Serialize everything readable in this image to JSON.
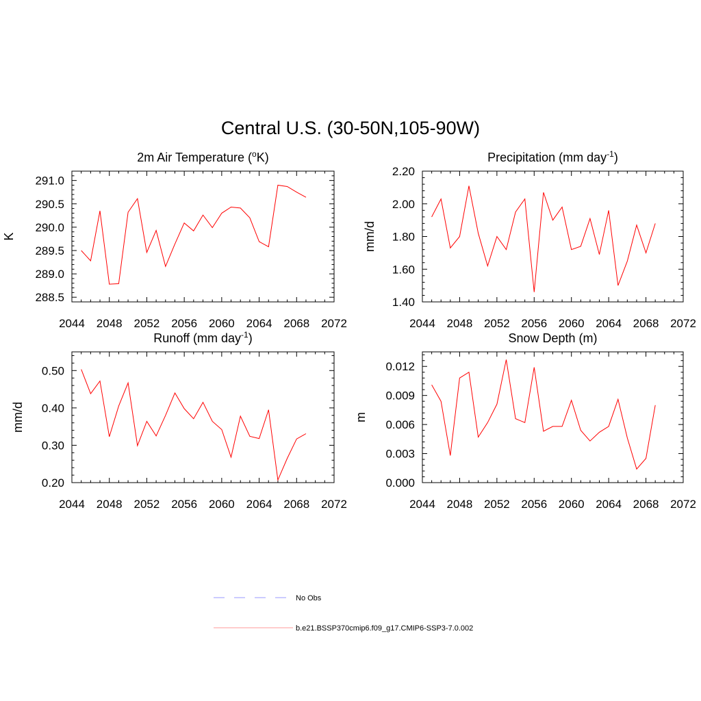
{
  "title": "Central U.S. (30-50N,105-90W)",
  "colors": {
    "series": "#ff0000",
    "obs": "#9999ff",
    "axis": "#000000"
  },
  "legend": {
    "obs_label": "No Obs",
    "model_label": "b.e21.BSSP370cmip6.f09_g17.CMIP6-SSP3-7.0.002"
  },
  "chart_data": [
    {
      "type": "line",
      "title_main": "2m Air Temperature (",
      "title_sup": "o",
      "title_rest": "K)",
      "ylabel": "K",
      "xlim": [
        2044,
        2072
      ],
      "ylim": [
        288.4,
        291.2
      ],
      "xticks": [
        "2044",
        "2048",
        "2052",
        "2056",
        "2060",
        "2064",
        "2068",
        "2072"
      ],
      "yticks": [
        "288.5",
        "289.0",
        "289.5",
        "290.0",
        "290.5",
        "291.0"
      ],
      "x": [
        2045,
        2046,
        2047,
        2048,
        2049,
        2050,
        2051,
        2052,
        2053,
        2054,
        2055,
        2056,
        2057,
        2058,
        2059,
        2060,
        2061,
        2062,
        2063,
        2064,
        2065,
        2066,
        2067,
        2068,
        2069
      ],
      "series": [
        {
          "values": [
            289.5,
            289.28,
            290.35,
            288.78,
            288.79,
            290.32,
            290.61,
            289.46,
            289.93,
            289.16,
            289.64,
            290.09,
            289.92,
            290.26,
            289.99,
            290.3,
            290.43,
            290.41,
            290.2,
            289.69,
            289.58,
            290.9,
            290.87,
            290.75,
            290.64
          ]
        }
      ]
    },
    {
      "type": "line",
      "title_main": "Precipitation (mm day",
      "title_sup": "-1",
      "title_rest": ")",
      "ylabel": "mm/d",
      "xlim": [
        2044,
        2072
      ],
      "ylim": [
        1.4,
        2.2
      ],
      "xticks": [
        "2044",
        "2048",
        "2052",
        "2056",
        "2060",
        "2064",
        "2068",
        "2072"
      ],
      "yticks": [
        "1.40",
        "1.60",
        "1.80",
        "2.00",
        "2.20"
      ],
      "x": [
        2045,
        2046,
        2047,
        2048,
        2049,
        2050,
        2051,
        2052,
        2053,
        2054,
        2055,
        2056,
        2057,
        2058,
        2059,
        2060,
        2061,
        2062,
        2063,
        2064,
        2065,
        2066,
        2067,
        2068,
        2069
      ],
      "series": [
        {
          "values": [
            1.92,
            2.03,
            1.73,
            1.8,
            2.11,
            1.82,
            1.62,
            1.8,
            1.72,
            1.95,
            2.03,
            1.46,
            2.07,
            1.9,
            1.98,
            1.72,
            1.74,
            1.91,
            1.69,
            1.96,
            1.5,
            1.65,
            1.87,
            1.7,
            1.88
          ]
        }
      ]
    },
    {
      "type": "line",
      "title_main": "Runoff (mm day",
      "title_sup": "-1",
      "title_rest": ")",
      "ylabel": "mm/d",
      "xlim": [
        2044,
        2072
      ],
      "ylim": [
        0.2,
        0.55
      ],
      "xticks": [
        "2044",
        "2048",
        "2052",
        "2056",
        "2060",
        "2064",
        "2068",
        "2072"
      ],
      "yticks": [
        "0.20",
        "0.30",
        "0.40",
        "0.50"
      ],
      "x": [
        2045,
        2046,
        2047,
        2048,
        2049,
        2050,
        2051,
        2052,
        2053,
        2054,
        2055,
        2056,
        2057,
        2058,
        2059,
        2060,
        2061,
        2062,
        2063,
        2064,
        2065,
        2066,
        2067,
        2068,
        2069
      ],
      "series": [
        {
          "values": [
            0.503,
            0.438,
            0.472,
            0.323,
            0.405,
            0.467,
            0.299,
            0.364,
            0.325,
            0.38,
            0.44,
            0.398,
            0.371,
            0.415,
            0.364,
            0.342,
            0.268,
            0.378,
            0.324,
            0.318,
            0.395,
            0.207,
            0.265,
            0.317,
            0.331
          ]
        }
      ]
    },
    {
      "type": "line",
      "title_main": "Snow Depth (m)",
      "title_sup": "",
      "title_rest": "",
      "ylabel": "m",
      "xlim": [
        2044,
        2072
      ],
      "ylim": [
        0.0,
        0.0135
      ],
      "xticks": [
        "2044",
        "2048",
        "2052",
        "2056",
        "2060",
        "2064",
        "2068",
        "2072"
      ],
      "yticks": [
        "0.000",
        "0.003",
        "0.006",
        "0.009",
        "0.012"
      ],
      "x": [
        2045,
        2046,
        2047,
        2048,
        2049,
        2050,
        2051,
        2052,
        2053,
        2054,
        2055,
        2056,
        2057,
        2058,
        2059,
        2060,
        2061,
        2062,
        2063,
        2064,
        2065,
        2066,
        2067,
        2068,
        2069
      ],
      "series": [
        {
          "values": [
            0.0101,
            0.0084,
            0.0028,
            0.0108,
            0.0114,
            0.0047,
            0.0062,
            0.0081,
            0.0127,
            0.0066,
            0.0062,
            0.0119,
            0.0053,
            0.0058,
            0.0058,
            0.0085,
            0.0054,
            0.0043,
            0.0052,
            0.0058,
            0.0086,
            0.0046,
            0.0014,
            0.0025,
            0.008
          ]
        }
      ]
    }
  ]
}
